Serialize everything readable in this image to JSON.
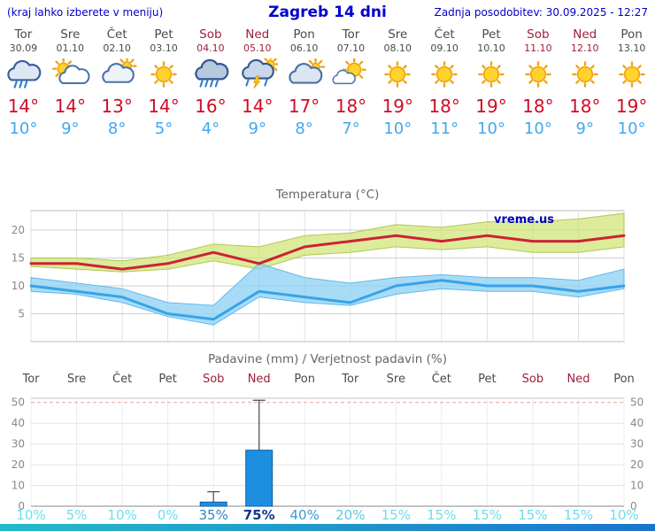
{
  "header": {
    "menu_note": "(kraj lahko izberete v meniju)",
    "title": "Zagreb 14 dni",
    "last_update": "Zadnja posodobitev: 30.09.2025 - 12:27"
  },
  "colors": {
    "header_text": "#0000cc",
    "weekday": "#4a4a4a",
    "weekend": "#a0203c",
    "tmax": "#d10b25",
    "tmin": "#41a8f0",
    "chart_title": "#666666",
    "axis_text": "#888888",
    "grid": "#e0e0e0",
    "grid_dashed_red": "#f0a0a0",
    "footer_from": "#25b9c9",
    "footer_to": "#1a74cf"
  },
  "days": [
    {
      "name": "Tor",
      "date": "30.09",
      "weekend": false,
      "icon": "rain",
      "tmax": "14°",
      "tmin": "10°"
    },
    {
      "name": "Sre",
      "date": "01.10",
      "weekend": false,
      "icon": "partly-cloudy",
      "tmax": "14°",
      "tmin": "9°"
    },
    {
      "name": "Čet",
      "date": "02.10",
      "weekend": false,
      "icon": "mostly-cloudy",
      "tmax": "13°",
      "tmin": "8°"
    },
    {
      "name": "Pet",
      "date": "03.10",
      "weekend": false,
      "icon": "sunny",
      "tmax": "14°",
      "tmin": "5°"
    },
    {
      "name": "Sob",
      "date": "04.10",
      "weekend": true,
      "icon": "heavy-rain",
      "tmax": "16°",
      "tmin": "4°"
    },
    {
      "name": "Ned",
      "date": "05.10",
      "weekend": true,
      "icon": "thunderstorm",
      "tmax": "14°",
      "tmin": "9°"
    },
    {
      "name": "Pon",
      "date": "06.10",
      "weekend": false,
      "icon": "cloudy",
      "tmax": "17°",
      "tmin": "8°"
    },
    {
      "name": "Tor",
      "date": "07.10",
      "weekend": false,
      "icon": "mostly-sunny",
      "tmax": "18°",
      "tmin": "7°"
    },
    {
      "name": "Sre",
      "date": "08.10",
      "weekend": false,
      "icon": "sunny",
      "tmax": "19°",
      "tmin": "10°"
    },
    {
      "name": "Čet",
      "date": "09.10",
      "weekend": false,
      "icon": "sunny",
      "tmax": "18°",
      "tmin": "11°"
    },
    {
      "name": "Pet",
      "date": "10.10",
      "weekend": false,
      "icon": "sunny",
      "tmax": "19°",
      "tmin": "10°"
    },
    {
      "name": "Sob",
      "date": "11.10",
      "weekend": true,
      "icon": "sunny",
      "tmax": "18°",
      "tmin": "10°"
    },
    {
      "name": "Ned",
      "date": "12.10",
      "weekend": true,
      "icon": "sunny",
      "tmax": "18°",
      "tmin": "9°"
    },
    {
      "name": "Pon",
      "date": "13.10",
      "weekend": false,
      "icon": "sunny",
      "tmax": "19°",
      "tmin": "10°"
    }
  ],
  "chart_data": [
    {
      "type": "line",
      "title": "Temperatura (°C)",
      "watermark": "vreme.us",
      "categories": [
        "Tor",
        "Sre",
        "Čet",
        "Pet",
        "Sob",
        "Ned",
        "Pon",
        "Tor",
        "Sre",
        "Čet",
        "Pet",
        "Sob",
        "Ned",
        "Pon"
      ],
      "ylim": [
        0,
        23.5
      ],
      "yticks": [
        5,
        10,
        15,
        20
      ],
      "grid": true,
      "legend": "none",
      "series": [
        {
          "name": "Max temperatura",
          "color": "#cc2233",
          "width": 3,
          "values": [
            14,
            14,
            13,
            14,
            16,
            14,
            17,
            18,
            19,
            18,
            19,
            18,
            18,
            19
          ]
        },
        {
          "name": "Min temperatura",
          "color": "#38a3e8",
          "width": 3,
          "values": [
            10,
            9,
            8,
            5,
            4,
            9,
            8,
            7,
            10,
            11,
            10,
            10,
            9,
            10
          ]
        }
      ],
      "bands": [
        {
          "name": "max-spread",
          "color": "#cde470",
          "edge": "#a8c448",
          "opacity": 0.7,
          "upper": [
            15,
            15,
            14.5,
            15.5,
            17.5,
            17,
            19,
            19.5,
            21,
            20.5,
            21.5,
            21.5,
            22,
            23
          ],
          "lower": [
            13.5,
            13,
            12.5,
            13,
            14.5,
            13,
            15.5,
            16,
            17,
            16.5,
            17,
            16,
            16,
            17
          ]
        },
        {
          "name": "min-spread",
          "color": "#8fd2f4",
          "edge": "#58b4e8",
          "opacity": 0.78,
          "upper": [
            11.5,
            10.5,
            9.5,
            7,
            6.5,
            14,
            11.5,
            10.5,
            11.5,
            12,
            11.5,
            11.5,
            11,
            13
          ],
          "lower": [
            9,
            8.5,
            7,
            4.5,
            3,
            8,
            7,
            6.5,
            8.5,
            9.5,
            9,
            9,
            8,
            9.5
          ]
        }
      ]
    },
    {
      "type": "bar",
      "title": "Padavine (mm) / Verjetnost padavin (%)",
      "categories": [
        "Tor",
        "Sre",
        "Čet",
        "Pet",
        "Sob",
        "Ned",
        "Pon",
        "Tor",
        "Sre",
        "Čet",
        "Pet",
        "Sob",
        "Ned",
        "Pon"
      ],
      "weekend": [
        false,
        false,
        false,
        false,
        true,
        true,
        false,
        false,
        false,
        false,
        false,
        true,
        true,
        false
      ],
      "ylim": [
        0,
        52
      ],
      "yticks": [
        0,
        10,
        20,
        30,
        40,
        50
      ],
      "bar_color": "#1e8fe0",
      "bar_edge": "#0b5fa5",
      "values_mm": [
        0,
        0,
        0,
        0,
        2,
        27,
        0,
        0,
        0,
        0,
        0,
        0,
        0,
        0
      ],
      "whisker_mm": [
        0,
        0,
        0,
        0,
        7,
        51,
        0,
        0,
        0,
        0,
        0,
        0,
        0,
        0
      ],
      "pop": [
        {
          "label": "10%",
          "color": "#6fdcec",
          "bold": false
        },
        {
          "label": "5%",
          "color": "#6fdcec",
          "bold": false
        },
        {
          "label": "10%",
          "color": "#6fdcec",
          "bold": false
        },
        {
          "label": "0%",
          "color": "#6fdcec",
          "bold": false
        },
        {
          "label": "35%",
          "color": "#2f86c8",
          "bold": false
        },
        {
          "label": "75%",
          "color": "#0d3a8c",
          "bold": true
        },
        {
          "label": "40%",
          "color": "#3a9bd4",
          "bold": false
        },
        {
          "label": "20%",
          "color": "#5ac8e4",
          "bold": false
        },
        {
          "label": "15%",
          "color": "#6fdcec",
          "bold": false
        },
        {
          "label": "15%",
          "color": "#6fdcec",
          "bold": false
        },
        {
          "label": "15%",
          "color": "#6fdcec",
          "bold": false
        },
        {
          "label": "15%",
          "color": "#6fdcec",
          "bold": false
        },
        {
          "label": "15%",
          "color": "#6fdcec",
          "bold": false
        },
        {
          "label": "10%",
          "color": "#6fdcec",
          "bold": false
        }
      ]
    }
  ]
}
